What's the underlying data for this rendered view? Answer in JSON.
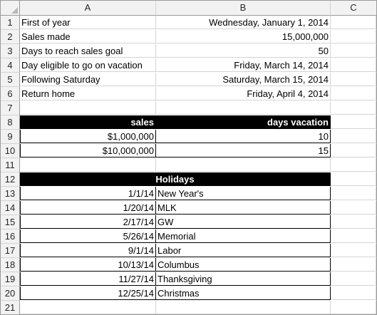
{
  "columns": [
    "A",
    "B",
    "C"
  ],
  "rows": {
    "r1": {
      "num": "1",
      "a": "First of year",
      "b": "Wednesday, January 1, 2014"
    },
    "r2": {
      "num": "2",
      "a": "Sales made",
      "b": "15,000,000"
    },
    "r3": {
      "num": "3",
      "a": "Days to reach sales goal",
      "b": "50"
    },
    "r4": {
      "num": "4",
      "a": "Day eligible to go on vacation",
      "b": "Friday, March 14, 2014"
    },
    "r5": {
      "num": "5",
      "a": "Following Saturday",
      "b": "Saturday, March 15, 2014"
    },
    "r6": {
      "num": "6",
      "a": "Return home",
      "b": "Friday, April 4, 2014"
    },
    "r7": {
      "num": "7"
    },
    "r8": {
      "num": "8",
      "a": "sales",
      "b": "days vacation"
    },
    "r9": {
      "num": "9",
      "a": "$1,000,000",
      "b": "10"
    },
    "r10": {
      "num": "10",
      "a": "$10,000,000",
      "b": "15"
    },
    "r11": {
      "num": "11"
    },
    "r12": {
      "num": "12",
      "merged": "Holidays"
    },
    "r13": {
      "num": "13",
      "a": "1/1/14",
      "b": "New Year's"
    },
    "r14": {
      "num": "14",
      "a": "1/20/14",
      "b": "MLK"
    },
    "r15": {
      "num": "15",
      "a": "2/17/14",
      "b": "GW"
    },
    "r16": {
      "num": "16",
      "a": "5/26/14",
      "b": "Memorial"
    },
    "r17": {
      "num": "17",
      "a": "9/1/14",
      "b": "Labor"
    },
    "r18": {
      "num": "18",
      "a": "10/13/14",
      "b": "Columbus"
    },
    "r19": {
      "num": "19",
      "a": "11/27/14",
      "b": "Thanksgiving"
    },
    "r20": {
      "num": "20",
      "a": "12/25/14",
      "b": "Christmas"
    },
    "r21": {
      "num": "21"
    }
  },
  "colors": {
    "header_bg": "#f2f2f2",
    "grid": "#d4d4d4",
    "table_header": "#000000"
  }
}
